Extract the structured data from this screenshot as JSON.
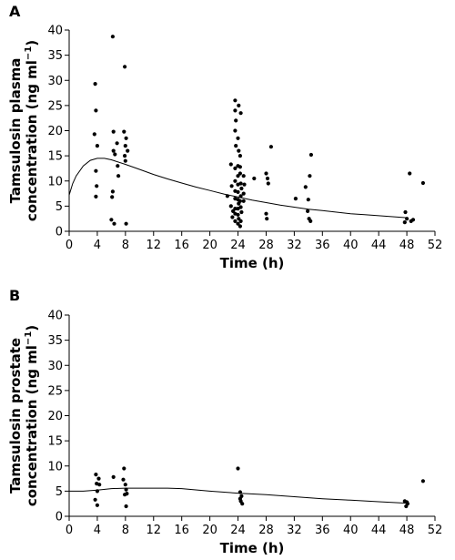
{
  "chart_data": [
    {
      "panel_label": "A",
      "type": "scatter",
      "xlabel": "Time (h)",
      "ylabel_line1": "Tamsulosin plasma",
      "ylabel_line2": "concentration (ng ml",
      "ylabel_sup": "−1",
      "ylabel_close": ")",
      "xlim": [
        0,
        52
      ],
      "ylim": [
        0,
        40
      ],
      "xticks": [
        0,
        4,
        8,
        12,
        16,
        20,
        24,
        28,
        32,
        36,
        40,
        44,
        48,
        52
      ],
      "yticks": [
        0,
        5,
        10,
        15,
        20,
        25,
        30,
        35,
        40
      ],
      "series": [
        {
          "type": "scatter",
          "points": [
            [
              3.7,
              29.3
            ],
            [
              3.8,
              24.0
            ],
            [
              3.6,
              19.3
            ],
            [
              4.0,
              17.0
            ],
            [
              3.8,
              12.0
            ],
            [
              3.9,
              9.0
            ],
            [
              3.8,
              6.9
            ],
            [
              6.2,
              38.7
            ],
            [
              6.3,
              19.8
            ],
            [
              6.8,
              17.5
            ],
            [
              6.3,
              16.0
            ],
            [
              6.5,
              15.3
            ],
            [
              6.9,
              13.0
            ],
            [
              7.0,
              11.0
            ],
            [
              6.2,
              7.9
            ],
            [
              6.1,
              6.8
            ],
            [
              6.0,
              2.3
            ],
            [
              6.4,
              1.5
            ],
            [
              7.9,
              32.7
            ],
            [
              7.8,
              19.8
            ],
            [
              8.1,
              18.5
            ],
            [
              8.0,
              17.0
            ],
            [
              8.3,
              16.0
            ],
            [
              7.9,
              15.0
            ],
            [
              8.0,
              14.0
            ],
            [
              8.1,
              1.5
            ],
            [
              22.5,
              7.0
            ],
            [
              23.0,
              13.3
            ],
            [
              23.1,
              9.0
            ],
            [
              23.0,
              5.0
            ],
            [
              23.3,
              4.0
            ],
            [
              23.2,
              2.8
            ],
            [
              23.6,
              26.0
            ],
            [
              23.6,
              24.0
            ],
            [
              23.7,
              22.0
            ],
            [
              23.6,
              20.0
            ],
            [
              23.7,
              17.0
            ],
            [
              23.6,
              12.5
            ],
            [
              23.6,
              10.0
            ],
            [
              23.6,
              8.0
            ],
            [
              23.6,
              6.5
            ],
            [
              23.6,
              4.5
            ],
            [
              23.6,
              3.5
            ],
            [
              23.6,
              2.0
            ],
            [
              24.1,
              25.0
            ],
            [
              24.0,
              18.5
            ],
            [
              24.1,
              16.0
            ],
            [
              24.0,
              13.0
            ],
            [
              24.0,
              11.0
            ],
            [
              24.0,
              9.3
            ],
            [
              24.0,
              7.8
            ],
            [
              24.0,
              6.3
            ],
            [
              24.1,
              5.5
            ],
            [
              24.0,
              4.5
            ],
            [
              24.0,
              3.3
            ],
            [
              24.1,
              2.5
            ],
            [
              24.0,
              1.5
            ],
            [
              24.4,
              23.5
            ],
            [
              24.3,
              15.0
            ],
            [
              24.3,
              12.8
            ],
            [
              24.3,
              11.5
            ],
            [
              24.4,
              9.5
            ],
            [
              24.5,
              8.5
            ],
            [
              24.4,
              7.0
            ],
            [
              24.3,
              6.0
            ],
            [
              24.4,
              4.8
            ],
            [
              24.5,
              3.8
            ],
            [
              24.4,
              2.0
            ],
            [
              24.3,
              1.0
            ],
            [
              24.8,
              11.0
            ],
            [
              24.9,
              9.3
            ],
            [
              24.8,
              7.5
            ],
            [
              24.8,
              6.0
            ],
            [
              26.3,
              10.5
            ],
            [
              28.0,
              11.5
            ],
            [
              28.2,
              10.5
            ],
            [
              28.3,
              9.5
            ],
            [
              28.0,
              3.5
            ],
            [
              28.1,
              2.5
            ],
            [
              28.7,
              16.8
            ],
            [
              32.2,
              6.5
            ],
            [
              33.6,
              8.8
            ],
            [
              34.0,
              6.3
            ],
            [
              34.2,
              11.0
            ],
            [
              34.4,
              15.2
            ],
            [
              33.9,
              4.0
            ],
            [
              34.1,
              2.5
            ],
            [
              34.3,
              2.0
            ],
            [
              47.8,
              3.8
            ],
            [
              48.0,
              2.5
            ],
            [
              47.7,
              1.8
            ],
            [
              48.4,
              11.5
            ],
            [
              48.6,
              2.0
            ],
            [
              48.9,
              2.3
            ],
            [
              50.3,
              9.6
            ]
          ]
        },
        {
          "type": "line",
          "points": [
            [
              0,
              7.2
            ],
            [
              0.5,
              9.5
            ],
            [
              1,
              11.0
            ],
            [
              2,
              13.0
            ],
            [
              3,
              14.1
            ],
            [
              4,
              14.5
            ],
            [
              5,
              14.5
            ],
            [
              6,
              14.2
            ],
            [
              8,
              13.3
            ],
            [
              10,
              12.3
            ],
            [
              12,
              11.3
            ],
            [
              14,
              10.4
            ],
            [
              16,
              9.6
            ],
            [
              18,
              8.8
            ],
            [
              20,
              8.1
            ],
            [
              22,
              7.4
            ],
            [
              24,
              6.8
            ],
            [
              26,
              6.2
            ],
            [
              28,
              5.7
            ],
            [
              30,
              5.2
            ],
            [
              32,
              4.8
            ],
            [
              34,
              4.4
            ],
            [
              36,
              4.1
            ],
            [
              38,
              3.8
            ],
            [
              40,
              3.5
            ],
            [
              42,
              3.3
            ],
            [
              44,
              3.1
            ],
            [
              46,
              2.9
            ],
            [
              48,
              2.7
            ]
          ]
        }
      ]
    },
    {
      "panel_label": "B",
      "type": "scatter",
      "xlabel": "Time (h)",
      "ylabel_line1": "Tamsulosin prostate",
      "ylabel_line2": "concentration (ng ml",
      "ylabel_sup": "−1",
      "ylabel_close": ")",
      "xlim": [
        0,
        52
      ],
      "ylim": [
        0,
        40
      ],
      "xticks": [
        0,
        4,
        8,
        12,
        16,
        20,
        24,
        28,
        32,
        36,
        40,
        44,
        48,
        52
      ],
      "yticks": [
        0,
        5,
        10,
        15,
        20,
        25,
        30,
        35,
        40
      ],
      "series": [
        {
          "type": "scatter",
          "points": [
            [
              3.8,
              8.3
            ],
            [
              4.2,
              7.5
            ],
            [
              3.9,
              6.5
            ],
            [
              4.3,
              6.3
            ],
            [
              4.0,
              5.0
            ],
            [
              3.7,
              3.3
            ],
            [
              4.0,
              2.2
            ],
            [
              6.3,
              7.8
            ],
            [
              7.8,
              9.5
            ],
            [
              7.7,
              7.3
            ],
            [
              8.0,
              6.3
            ],
            [
              8.1,
              5.3
            ],
            [
              8.2,
              4.5
            ],
            [
              7.9,
              4.3
            ],
            [
              8.1,
              2.0
            ],
            [
              24.0,
              9.5
            ],
            [
              24.3,
              4.8
            ],
            [
              24.5,
              4.0
            ],
            [
              24.3,
              3.5
            ],
            [
              24.4,
              3.0
            ],
            [
              24.6,
              2.5
            ],
            [
              47.7,
              3.0
            ],
            [
              48.0,
              2.8
            ],
            [
              48.1,
              2.5
            ],
            [
              47.9,
              2.0
            ],
            [
              50.3,
              7.0
            ]
          ]
        },
        {
          "type": "line",
          "points": [
            [
              0,
              5.0
            ],
            [
              2,
              5.0
            ],
            [
              4,
              5.2
            ],
            [
              6,
              5.5
            ],
            [
              8,
              5.6
            ],
            [
              10,
              5.6
            ],
            [
              12,
              5.6
            ],
            [
              14,
              5.6
            ],
            [
              16,
              5.5
            ],
            [
              20,
              5.0
            ],
            [
              24,
              4.6
            ],
            [
              28,
              4.3
            ],
            [
              32,
              3.9
            ],
            [
              36,
              3.5
            ],
            [
              40,
              3.2
            ],
            [
              44,
              2.9
            ],
            [
              48,
              2.6
            ]
          ]
        }
      ]
    }
  ]
}
